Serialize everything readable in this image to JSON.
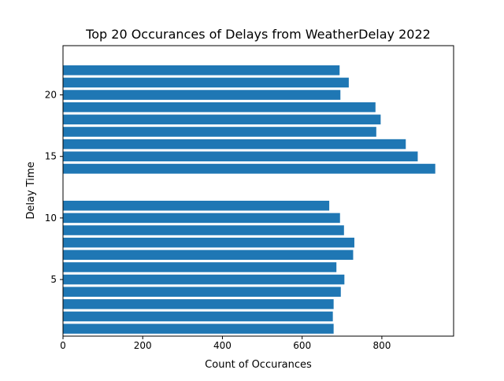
{
  "chart_data": {
    "type": "bar",
    "orientation": "horizontal",
    "title": "Top 20 Occurances of Delays from WeatherDelay 2022",
    "xlabel": "Count of Occurances",
    "ylabel": "Delay Time",
    "xlim": [
      0,
      980
    ],
    "ylim": [
      0.4,
      24.0
    ],
    "x_ticks": [
      0,
      200,
      400,
      600,
      800
    ],
    "y_ticks": [
      5,
      10,
      15,
      20
    ],
    "grid": false,
    "bar_color": "#1f77b4",
    "bars": [
      {
        "y": 1,
        "value": 679
      },
      {
        "y": 2,
        "value": 677
      },
      {
        "y": 3,
        "value": 679
      },
      {
        "y": 4,
        "value": 697
      },
      {
        "y": 5,
        "value": 706
      },
      {
        "y": 6,
        "value": 686
      },
      {
        "y": 7,
        "value": 728
      },
      {
        "y": 8,
        "value": 731
      },
      {
        "y": 9,
        "value": 705
      },
      {
        "y": 10,
        "value": 695
      },
      {
        "y": 11,
        "value": 668
      },
      {
        "y": 14,
        "value": 934
      },
      {
        "y": 15,
        "value": 890
      },
      {
        "y": 16,
        "value": 860
      },
      {
        "y": 17,
        "value": 786
      },
      {
        "y": 18,
        "value": 797
      },
      {
        "y": 19,
        "value": 784
      },
      {
        "y": 20,
        "value": 696
      },
      {
        "y": 21,
        "value": 717
      },
      {
        "y": 22,
        "value": 694
      }
    ]
  }
}
